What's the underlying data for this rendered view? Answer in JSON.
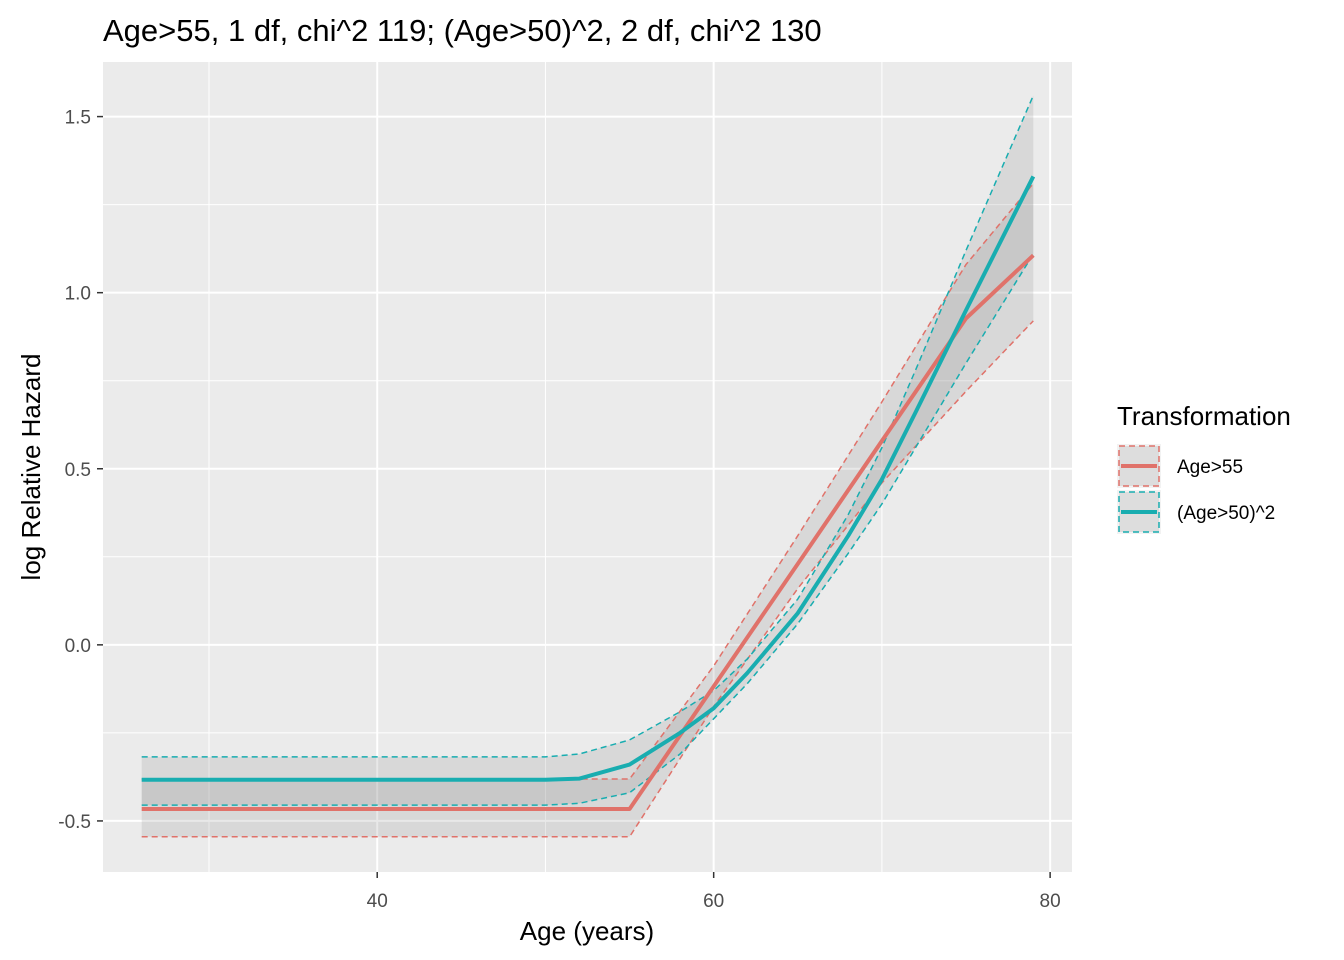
{
  "chart_data": {
    "type": "line",
    "title": "Age>55, 1 df, chi^2 119; (Age>50)^2, 2 df,  chi^2 130",
    "xlabel": "Age (years)",
    "ylabel": "log Relative Hazard",
    "xlim": [
      23.7,
      81.3
    ],
    "ylim": [
      -0.645,
      1.655
    ],
    "x_ticks": [
      40,
      60,
      80
    ],
    "x_tick_labels": [
      "40",
      "60",
      "80"
    ],
    "y_ticks": [
      -0.5,
      0.0,
      0.5,
      1.0,
      1.5
    ],
    "y_tick_labels": [
      "-0.5",
      "0.0",
      "0.5",
      "1.0",
      "1.5"
    ],
    "grid": true,
    "legend": {
      "title": "Transformation",
      "position": "right"
    },
    "colors": {
      "age55": "#e0726a",
      "age50sq": "#19adb0",
      "ribbon": "#8c8c8c",
      "panel": "#ebebeb",
      "grid": "#ffffff"
    },
    "series": [
      {
        "name": "Age>55",
        "color": "#e0726a",
        "x": [
          26,
          30,
          35,
          40,
          45,
          50,
          55,
          60,
          65,
          70,
          75,
          79
        ],
        "y": [
          -0.466,
          -0.466,
          -0.466,
          -0.466,
          -0.466,
          -0.466,
          -0.466,
          -0.118,
          0.23,
          0.579,
          0.927,
          1.106
        ],
        "lower": [
          -0.545,
          -0.545,
          -0.545,
          -0.545,
          -0.545,
          -0.545,
          -0.545,
          -0.175,
          0.16,
          0.46,
          0.72,
          0.92
        ],
        "upper": [
          -0.381,
          -0.381,
          -0.381,
          -0.381,
          -0.381,
          -0.381,
          -0.381,
          -0.06,
          0.31,
          0.69,
          1.08,
          1.31
        ]
      },
      {
        "name": "(Age>50)^2",
        "color": "#19adb0",
        "x": [
          26,
          30,
          35,
          40,
          45,
          50,
          52,
          55,
          58,
          60,
          62,
          65,
          68,
          70,
          72,
          75,
          79
        ],
        "y": [
          -0.383,
          -0.383,
          -0.383,
          -0.383,
          -0.383,
          -0.383,
          -0.38,
          -0.34,
          -0.25,
          -0.18,
          -0.08,
          0.09,
          0.31,
          0.47,
          0.66,
          0.95,
          1.33
        ],
        "lower": [
          -0.455,
          -0.455,
          -0.455,
          -0.455,
          -0.455,
          -0.455,
          -0.45,
          -0.42,
          -0.31,
          -0.21,
          -0.11,
          0.06,
          0.26,
          0.4,
          0.56,
          0.8,
          1.11
        ],
        "upper": [
          -0.318,
          -0.318,
          -0.318,
          -0.318,
          -0.318,
          -0.318,
          -0.31,
          -0.27,
          -0.19,
          -0.13,
          -0.04,
          0.13,
          0.37,
          0.56,
          0.78,
          1.12,
          1.56
        ]
      }
    ]
  }
}
